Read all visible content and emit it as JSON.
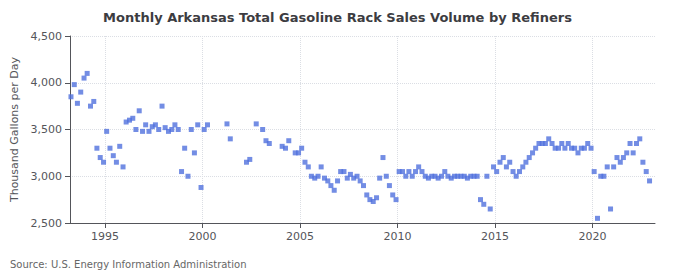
{
  "chart_data": {
    "type": "scatter",
    "title": "Monthly Arkansas Total Gasoline Rack Sales Volume by Refiners",
    "ylabel": "Thousand Gallons per Day",
    "annotations": [
      "Source: U.S. Energy Information Administration"
    ],
    "marker": "square",
    "grid": true,
    "xlim": [
      1993.2,
      2023.2
    ],
    "xticks": [
      1995,
      2000,
      2005,
      2010,
      2015,
      2020
    ],
    "ylim": [
      2500,
      4500
    ],
    "yticks": [
      {
        "value": 2500,
        "label": "2,500"
      },
      {
        "value": 3000,
        "label": "3,000"
      },
      {
        "value": 3500,
        "label": "3,500"
      },
      {
        "value": 4000,
        "label": "4,000"
      },
      {
        "value": 4500,
        "label": "4,500"
      }
    ],
    "x": [
      1993.25,
      1993.42,
      1993.58,
      1993.75,
      1993.92,
      1994.08,
      1994.25,
      1994.42,
      1994.58,
      1994.75,
      1994.92,
      1995.08,
      1995.25,
      1995.42,
      1995.58,
      1995.75,
      1995.92,
      1996.08,
      1996.25,
      1996.42,
      1996.58,
      1996.75,
      1996.92,
      1997.08,
      1997.25,
      1997.42,
      1997.58,
      1997.75,
      1997.92,
      1998.08,
      1998.25,
      1998.42,
      1998.58,
      1998.75,
      1998.92,
      1999.08,
      1999.25,
      1999.42,
      1999.58,
      1999.75,
      1999.92,
      2000.08,
      2000.25,
      2001.25,
      2001.42,
      2002.25,
      2002.42,
      2002.75,
      2003.08,
      2003.25,
      2003.42,
      2004.08,
      2004.25,
      2004.42,
      2004.75,
      2004.92,
      2005.08,
      2005.25,
      2005.42,
      2005.58,
      2005.75,
      2005.92,
      2006.08,
      2006.25,
      2006.42,
      2006.58,
      2006.75,
      2006.92,
      2007.08,
      2007.25,
      2007.42,
      2007.58,
      2007.75,
      2007.92,
      2008.08,
      2008.25,
      2008.42,
      2008.58,
      2008.75,
      2008.92,
      2009.08,
      2009.25,
      2009.42,
      2009.58,
      2009.75,
      2009.92,
      2010.08,
      2010.25,
      2010.42,
      2010.58,
      2010.75,
      2010.92,
      2011.08,
      2011.25,
      2011.42,
      2011.58,
      2011.75,
      2011.92,
      2012.08,
      2012.25,
      2012.42,
      2012.58,
      2012.75,
      2012.92,
      2013.08,
      2013.25,
      2013.42,
      2013.58,
      2013.75,
      2013.92,
      2014.08,
      2014.25,
      2014.42,
      2014.58,
      2014.75,
      2014.92,
      2015.08,
      2015.25,
      2015.42,
      2015.58,
      2015.75,
      2015.92,
      2016.08,
      2016.25,
      2016.42,
      2016.58,
      2016.75,
      2016.92,
      2017.08,
      2017.25,
      2017.42,
      2017.58,
      2017.75,
      2017.92,
      2018.08,
      2018.25,
      2018.42,
      2018.58,
      2018.75,
      2018.92,
      2019.08,
      2019.25,
      2019.42,
      2019.58,
      2019.75,
      2019.92,
      2020.08,
      2020.25,
      2020.42,
      2020.58,
      2020.75,
      2020.92,
      2021.08,
      2021.25,
      2021.42,
      2021.58,
      2021.75,
      2021.92,
      2022.08,
      2022.25,
      2022.42,
      2022.58,
      2022.75,
      2022.92
    ],
    "values": [
      3850,
      3980,
      3780,
      3900,
      4050,
      4100,
      3750,
      3800,
      3300,
      3200,
      3150,
      3480,
      3300,
      3220,
      3150,
      3320,
      3100,
      3580,
      3600,
      3620,
      3500,
      3700,
      3480,
      3550,
      3480,
      3530,
      3550,
      3500,
      3750,
      3520,
      3480,
      3500,
      3550,
      3500,
      3050,
      3300,
      3000,
      3500,
      3250,
      3550,
      2880,
      3500,
      3550,
      3560,
      3400,
      3150,
      3180,
      3560,
      3500,
      3380,
      3350,
      3320,
      3300,
      3380,
      3250,
      3250,
      3300,
      3150,
      3100,
      3000,
      2980,
      3000,
      3100,
      2980,
      2950,
      2900,
      2850,
      2950,
      3050,
      3050,
      2980,
      3020,
      2980,
      3000,
      2950,
      2900,
      2800,
      2750,
      2730,
      2770,
      2980,
      3200,
      3000,
      2900,
      2800,
      2750,
      3050,
      3050,
      3000,
      3050,
      3000,
      3050,
      3100,
      3050,
      3000,
      2980,
      3000,
      3000,
      2980,
      3000,
      3050,
      3000,
      2980,
      3000,
      3000,
      3000,
      3000,
      2980,
      3000,
      3000,
      3000,
      2750,
      2700,
      3000,
      2650,
      3100,
      3050,
      3150,
      3200,
      3100,
      3150,
      3050,
      3000,
      3050,
      3100,
      3150,
      3200,
      3250,
      3300,
      3350,
      3350,
      3350,
      3400,
      3350,
      3300,
      3300,
      3350,
      3300,
      3350,
      3300,
      3300,
      3250,
      3300,
      3300,
      3350,
      3300,
      3050,
      2550,
      3000,
      3000,
      3100,
      2650,
      3100,
      3200,
      3150,
      3200,
      3250,
      3350,
      3250,
      3350,
      3400,
      3150,
      3050,
      2950
    ]
  }
}
